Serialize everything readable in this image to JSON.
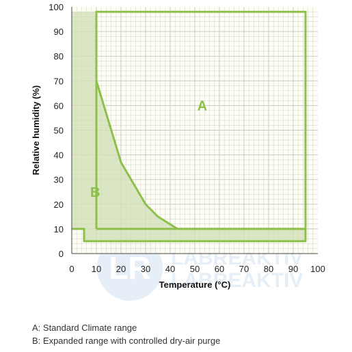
{
  "chart_data": {
    "type": "area",
    "xlabel": "Temperature (°C)",
    "ylabel": "Relative humidity (%)",
    "xlim": [
      0,
      100
    ],
    "ylim": [
      0,
      100
    ],
    "x_ticks": [
      0,
      10,
      20,
      30,
      40,
      50,
      60,
      70,
      80,
      90,
      100
    ],
    "y_ticks": [
      0,
      10,
      20,
      30,
      40,
      50,
      60,
      70,
      80,
      90,
      100
    ],
    "grid": true,
    "series": [
      {
        "name": "A",
        "points": [
          [
            10,
            10
          ],
          [
            10,
            98
          ],
          [
            95,
            98
          ],
          [
            95,
            10
          ],
          [
            10,
            10
          ]
        ]
      },
      {
        "name": "B",
        "points": [
          [
            0,
            0
          ],
          [
            0,
            98
          ],
          [
            10,
            98
          ],
          [
            10,
            70
          ],
          [
            20,
            37
          ],
          [
            30,
            20
          ],
          [
            35,
            15
          ],
          [
            43,
            10
          ],
          [
            95,
            10
          ],
          [
            95,
            5
          ],
          [
            5,
            5
          ],
          [
            5,
            10
          ],
          [
            0,
            10
          ]
        ]
      }
    ],
    "legend": [
      "A: Standard Climate range",
      "B: Expanded range with controlled dry-air purge"
    ],
    "colors": {
      "outline": "#8dc04a",
      "fill_b": "#d2e0b8",
      "plot_background": "#fffef0",
      "grid": "#c8c8c8",
      "region_label": "#8dc04a"
    }
  },
  "watermark": {
    "logo": "LR",
    "line1": "LABREAKTIV",
    "line2": "LABREAKTIV"
  }
}
